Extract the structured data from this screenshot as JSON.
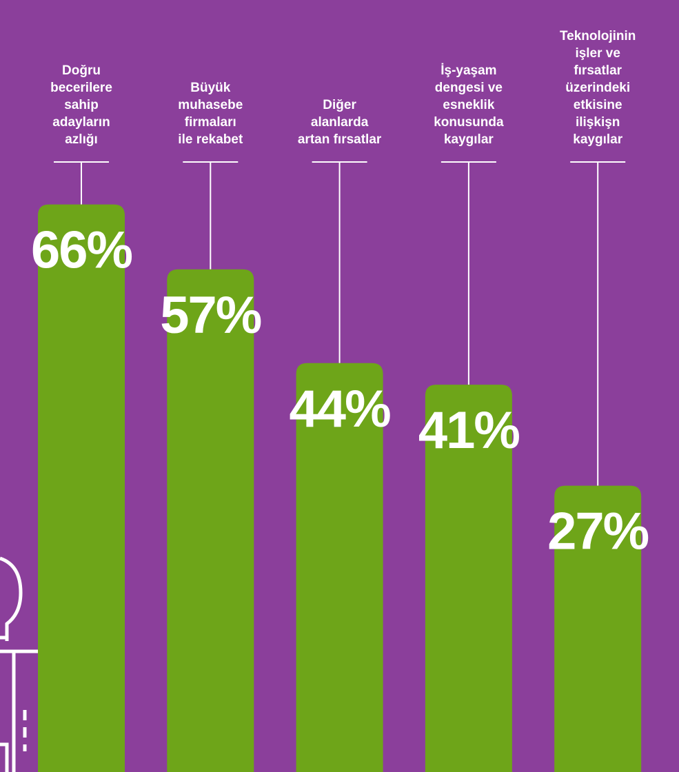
{
  "chart_data": {
    "type": "bar",
    "categories": [
      "Doğru\nbecerilere\nsahip\nadayların\nazlığı",
      "Büyük\nmuhasebe\nfirmaları\nile rekabet",
      "Diğer\nalanlarda\nartan fırsatlar",
      "İş-yaşam\ndengesi ve\nesneklik\nkonusunda\nkaygılar",
      "Teknolojinin\nişler ve\nfırsatlar\nüzerindeki\netkisine\nilişkişn\nkaygılar"
    ],
    "values": [
      66,
      57,
      44,
      41,
      27
    ],
    "value_labels": [
      "66%",
      "57%",
      "44%",
      "41%",
      "27%"
    ],
    "color": "#6ea519"
  }
}
